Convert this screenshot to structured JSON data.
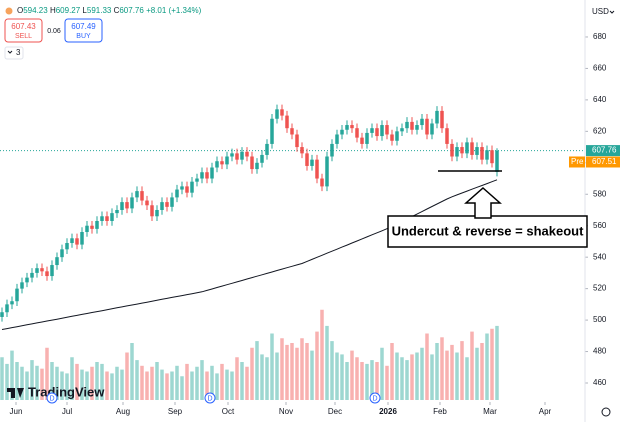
{
  "ui": {
    "ohlc": {
      "o_label": "O",
      "o": 594.23,
      "h_label": "H",
      "h": 609.27,
      "l_label": "L",
      "l": 591.33,
      "c_label": "C",
      "c": 607.76,
      "change": "+8.01",
      "change_pct": "(+1.34%)"
    },
    "sell_price": 607.43,
    "sell": "SELL",
    "spread": 0.06,
    "buy_price": 607.49,
    "buy": "BUY",
    "indicators_count": 3,
    "currency": "USD",
    "last_price": 607.76,
    "pre_label": "Pre",
    "pre_price": 607.51,
    "annotation": "Undercut & reverse = shakeout",
    "logo": "TradingView",
    "dividend": "D"
  },
  "chart_data": {
    "type": "candlestick",
    "up_color": "#26a69a",
    "down_color": "#ef5350",
    "ma_color": "#131722",
    "open": [
      502,
      505,
      510,
      512,
      520,
      524,
      527,
      530,
      533,
      531,
      528,
      535,
      540,
      545,
      549,
      552,
      548,
      556,
      560,
      558,
      563,
      566,
      563,
      568,
      570,
      575,
      571,
      578,
      582,
      576,
      573,
      566,
      570,
      575,
      572,
      578,
      583,
      585,
      581,
      588,
      590,
      594,
      590,
      597,
      601,
      599,
      604,
      606,
      602,
      607,
      604,
      596,
      600,
      605,
      612,
      628,
      634,
      630,
      622,
      618,
      610,
      606,
      598,
      602,
      590,
      585,
      604,
      612,
      618,
      621,
      624,
      622,
      616,
      612,
      619,
      622,
      617,
      624,
      618,
      614,
      620,
      622,
      626,
      621,
      624,
      628,
      618,
      625,
      633,
      622,
      612,
      604,
      610,
      606,
      613,
      605,
      610,
      602,
      608,
      594.23
    ],
    "high": [
      508,
      513,
      515,
      523,
      527,
      530,
      533,
      536,
      536,
      534,
      538,
      543,
      548,
      552,
      555,
      555,
      559,
      563,
      563,
      566,
      569,
      569,
      571,
      573,
      578,
      578,
      581,
      585,
      585,
      579,
      576,
      573,
      578,
      578,
      581,
      586,
      588,
      588,
      591,
      593,
      597,
      597,
      600,
      604,
      604,
      607,
      609,
      609,
      610,
      610,
      607,
      603,
      608,
      615,
      631,
      637,
      637,
      633,
      625,
      621,
      613,
      609,
      605,
      605,
      593,
      607,
      615,
      621,
      624,
      627,
      627,
      625,
      619,
      622,
      625,
      625,
      627,
      627,
      621,
      623,
      625,
      629,
      629,
      627,
      631,
      631,
      628,
      636,
      636,
      625,
      615,
      613,
      613,
      616,
      616,
      613,
      613,
      611,
      611,
      609.27
    ],
    "low": [
      499,
      502,
      507,
      509,
      517,
      521,
      524,
      527,
      528,
      525,
      525,
      532,
      537,
      542,
      546,
      545,
      545,
      553,
      555,
      555,
      560,
      560,
      560,
      565,
      567,
      568,
      568,
      575,
      573,
      570,
      563,
      563,
      567,
      569,
      569,
      575,
      580,
      578,
      578,
      585,
      587,
      587,
      587,
      594,
      596,
      596,
      601,
      599,
      599,
      601,
      593,
      593,
      597,
      602,
      609,
      625,
      627,
      619,
      615,
      607,
      603,
      595,
      595,
      587,
      582,
      582,
      601,
      609,
      615,
      618,
      619,
      613,
      609,
      609,
      616,
      614,
      614,
      615,
      611,
      611,
      617,
      619,
      618,
      618,
      621,
      615,
      615,
      622,
      619,
      609,
      601,
      601,
      603,
      603,
      602,
      602,
      599,
      599,
      597,
      591.33
    ],
    "close": [
      505,
      510,
      512,
      520,
      524,
      527,
      530,
      533,
      531,
      528,
      535,
      540,
      545,
      549,
      552,
      548,
      556,
      560,
      558,
      563,
      566,
      563,
      568,
      570,
      575,
      571,
      578,
      582,
      576,
      573,
      566,
      570,
      575,
      572,
      578,
      583,
      585,
      581,
      588,
      590,
      594,
      590,
      597,
      601,
      599,
      604,
      606,
      602,
      607,
      604,
      596,
      600,
      605,
      612,
      628,
      634,
      630,
      622,
      618,
      610,
      606,
      598,
      602,
      590,
      585,
      604,
      612,
      618,
      621,
      624,
      622,
      616,
      612,
      619,
      622,
      617,
      624,
      618,
      614,
      620,
      622,
      626,
      621,
      624,
      628,
      618,
      625,
      633,
      622,
      612,
      604,
      610,
      606,
      613,
      605,
      610,
      602,
      608,
      599.75,
      607.76
    ],
    "volume": [
      45,
      38,
      52,
      40,
      35,
      30,
      42,
      36,
      33,
      55,
      40,
      35,
      30,
      28,
      45,
      38,
      32,
      30,
      35,
      40,
      38,
      30,
      28,
      35,
      32,
      50,
      60,
      42,
      36,
      30,
      35,
      40,
      32,
      28,
      30,
      36,
      25,
      38,
      30,
      35,
      42,
      30,
      36,
      28,
      38,
      32,
      30,
      45,
      40,
      35,
      55,
      62,
      48,
      45,
      70,
      50,
      65,
      58,
      60,
      55,
      65,
      60,
      52,
      72,
      95,
      78,
      62,
      50,
      48,
      40,
      52,
      45,
      40,
      38,
      42,
      40,
      55,
      36,
      60,
      50,
      45,
      42,
      48,
      50,
      55,
      70,
      48,
      60,
      66,
      52,
      58,
      50,
      62,
      45,
      72,
      55,
      60,
      70,
      75,
      78
    ],
    "ma": [
      494,
      494.6,
      495.2,
      495.8,
      496.4,
      497,
      497.6,
      498.2,
      498.8,
      499.4,
      500,
      500.6,
      501.2,
      501.8,
      502.4,
      503,
      503.6,
      504.2,
      504.8,
      505.4,
      506,
      506.6,
      507.2,
      507.8,
      508.4,
      509,
      509.6,
      510.2,
      510.8,
      511.4,
      512,
      512.6,
      513.2,
      513.8,
      514.4,
      515,
      515.6,
      516.2,
      516.8,
      517.4,
      518,
      518.9,
      519.8,
      520.7,
      521.6,
      522.5,
      523.4,
      524.3,
      525.2,
      526.1,
      527,
      527.9,
      528.8,
      529.7,
      530.6,
      531.5,
      532.4,
      533.3,
      534.2,
      535.1,
      536,
      537.3,
      538.6,
      539.9,
      541.2,
      542.5,
      543.8,
      545.1,
      546.4,
      547.7,
      549,
      550.3,
      551.6,
      552.9,
      554.2,
      555.5,
      556.8,
      558.1,
      559.4,
      561,
      562.6,
      564.2,
      565.8,
      567.4,
      569,
      570.6,
      572.2,
      573.8,
      575.4,
      577,
      578.4,
      579.6,
      580.8,
      582,
      583.2,
      584.4,
      585.6,
      586.8,
      588,
      589.2
    ],
    "support_level": 594.8,
    "ylim": [
      449.2,
      703.5
    ],
    "yticks": [
      460,
      480,
      500,
      520,
      540,
      560,
      580,
      600,
      620,
      640,
      660,
      680
    ],
    "xlim": [
      -0.4,
      116.6
    ],
    "xticks": [
      {
        "value": 2.8,
        "label": "Jun"
      },
      {
        "value": 13,
        "label": "Jul"
      },
      {
        "value": 24.2,
        "label": "Aug"
      },
      {
        "value": 34.6,
        "label": "Sep"
      },
      {
        "value": 45.2,
        "label": "Oct"
      },
      {
        "value": 56.8,
        "label": "Nov"
      },
      {
        "value": 66.6,
        "label": "Dec"
      },
      {
        "value": 77.2,
        "label": "2026"
      },
      {
        "value": 87.6,
        "label": "Feb"
      },
      {
        "value": 97.6,
        "label": "Mar"
      },
      {
        "value": 108.6,
        "label": "Apr"
      }
    ],
    "dividends": [
      10,
      41.6,
      74.6
    ]
  }
}
